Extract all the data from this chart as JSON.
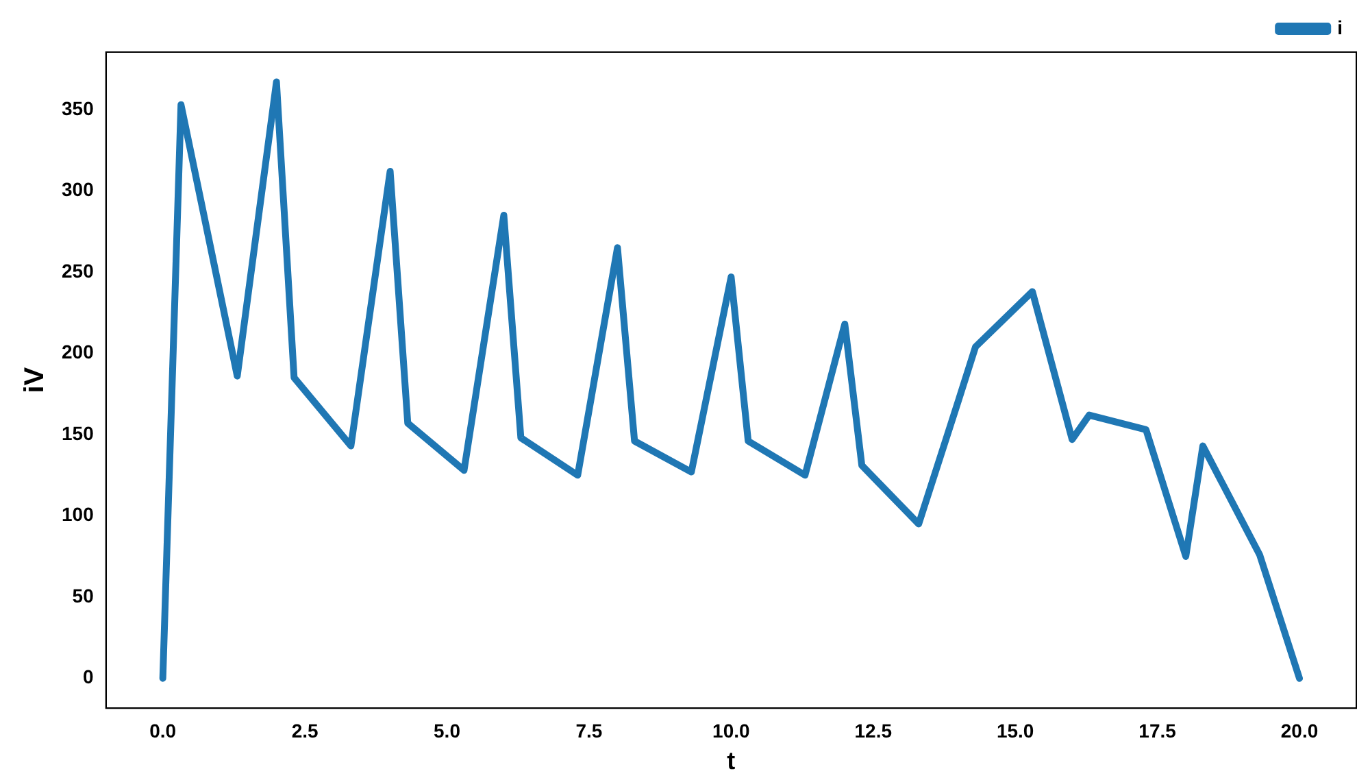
{
  "chart_data": {
    "type": "line",
    "xlabel": "t",
    "ylabel": "iV",
    "legend": "top right",
    "marker": "none",
    "line_style": "solid",
    "grid": false,
    "xlim": [
      -1,
      21
    ],
    "xticks": [
      {
        "value": 0,
        "label": "0.0"
      },
      {
        "value": 2.5,
        "label": "2.5"
      },
      {
        "value": 5,
        "label": "5.0"
      },
      {
        "value": 7.5,
        "label": "7.5"
      },
      {
        "value": 10,
        "label": "10.0"
      },
      {
        "value": 12.5,
        "label": "12.5"
      },
      {
        "value": 15,
        "label": "15.0"
      },
      {
        "value": 17.5,
        "label": "17.5"
      },
      {
        "value": 20,
        "label": "20.0"
      }
    ],
    "ylim": [
      -18.35,
      385.35
    ],
    "yticks": [
      0,
      50,
      100,
      150,
      200,
      250,
      300,
      350
    ],
    "x": [
      0,
      0.32,
      1.31,
      2.0,
      2.31,
      3.31,
      4.0,
      4.31,
      5.3,
      6.0,
      6.3,
      7.3,
      8.0,
      8.3,
      9.3,
      10.0,
      10.3,
      11.3,
      12.0,
      12.3,
      13.3,
      14.0,
      14.3,
      15.3,
      16.0,
      16.3,
      17.3,
      18.0,
      18.3,
      19.3,
      20
    ],
    "series": [
      {
        "name": "i",
        "color": "#1f77b4",
        "values": [
          0,
          353,
          186,
          367,
          185,
          143,
          312,
          157,
          128,
          285,
          148,
          125,
          265,
          146,
          127,
          247,
          146,
          125,
          218,
          131,
          95,
          171,
          204,
          238,
          147,
          162,
          153,
          75,
          143,
          76,
          0
        ]
      }
    ]
  }
}
